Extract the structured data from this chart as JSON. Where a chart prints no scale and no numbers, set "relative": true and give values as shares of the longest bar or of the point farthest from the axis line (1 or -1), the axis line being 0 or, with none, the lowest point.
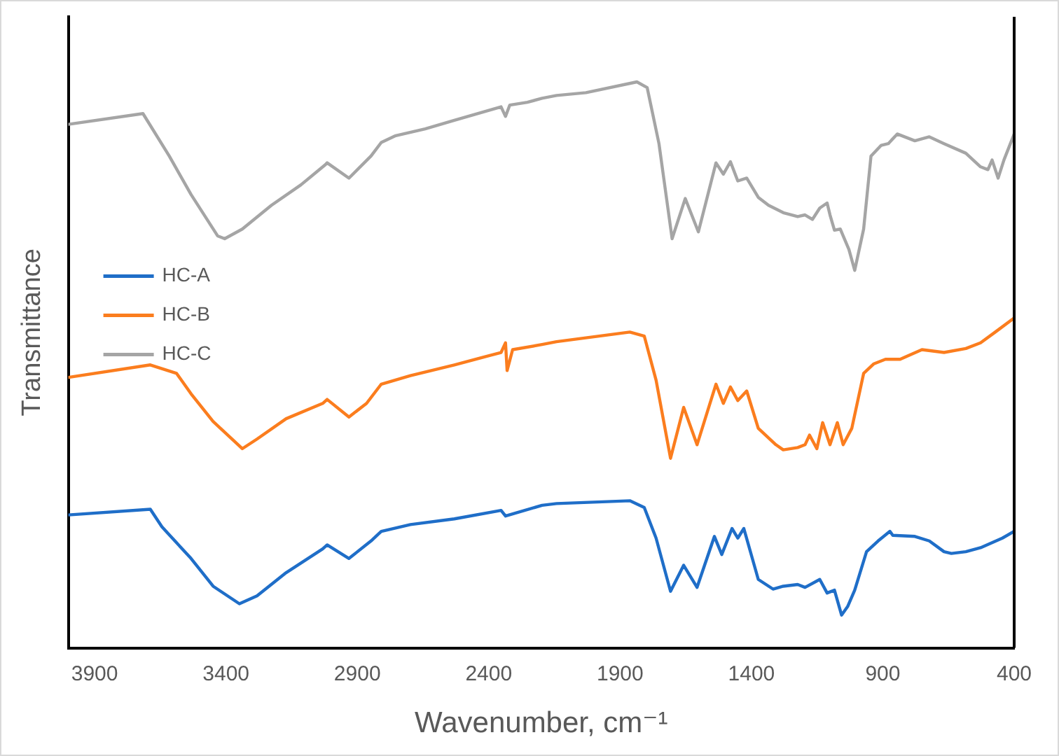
{
  "chart_data": {
    "type": "line",
    "xlabel": "Wavenumber, cm⁻¹",
    "ylabel": "Transmittance",
    "relative": true,
    "xlim": [
      4000,
      400
    ],
    "xticks": [
      3900,
      3400,
      2900,
      2400,
      1900,
      1400,
      900,
      400
    ],
    "grid": false,
    "legend": "left",
    "marker": "none",
    "line_style": "solid",
    "series": [
      {
        "name": "HC-A",
        "color": "#1f6ec8",
        "x": [
          4000,
          3688,
          3644,
          3533,
          3449,
          3349,
          3282,
          3171,
          3032,
          3015,
          2932,
          2848,
          2809,
          2698,
          2531,
          2353,
          2336,
          2197,
          2142,
          1863,
          1808,
          1763,
          1708,
          1658,
          1607,
          1541,
          1513,
          1474,
          1452,
          1429,
          1374,
          1318,
          1279,
          1224,
          1196,
          1140,
          1112,
          1084,
          1057,
          1034,
          1007,
          962,
          918,
          873,
          862,
          778,
          723,
          667,
          639,
          584,
          528,
          445,
          400
        ],
        "values": [
          0.235,
          0.245,
          0.214,
          0.158,
          0.109,
          0.078,
          0.092,
          0.133,
          0.175,
          0.182,
          0.158,
          0.189,
          0.206,
          0.218,
          0.228,
          0.243,
          0.233,
          0.252,
          0.255,
          0.26,
          0.248,
          0.194,
          0.1,
          0.146,
          0.107,
          0.197,
          0.165,
          0.211,
          0.194,
          0.211,
          0.121,
          0.104,
          0.109,
          0.112,
          0.107,
          0.121,
          0.097,
          0.102,
          0.058,
          0.073,
          0.102,
          0.17,
          0.189,
          0.206,
          0.199,
          0.197,
          0.189,
          0.17,
          0.167,
          0.17,
          0.177,
          0.194,
          0.206
        ]
      },
      {
        "name": "HC-B",
        "color": "#fb7d1e",
        "x": [
          4000,
          3688,
          3588,
          3533,
          3449,
          3338,
          3282,
          3171,
          3032,
          3015,
          2932,
          2865,
          2809,
          2698,
          2531,
          2353,
          2336,
          2330,
          2309,
          2197,
          2142,
          1863,
          1808,
          1763,
          1708,
          1658,
          1607,
          1535,
          1507,
          1480,
          1452,
          1418,
          1374,
          1307,
          1279,
          1224,
          1196,
          1179,
          1151,
          1129,
          1101,
          1073,
          1051,
          1018,
          973,
          934,
          890,
          834,
          751,
          667,
          584,
          528,
          472,
          400
        ],
        "values": [
          0.478,
          0.5,
          0.485,
          0.449,
          0.4,
          0.352,
          0.369,
          0.405,
          0.432,
          0.439,
          0.408,
          0.432,
          0.466,
          0.481,
          0.5,
          0.522,
          0.539,
          0.49,
          0.527,
          0.536,
          0.541,
          0.558,
          0.551,
          0.473,
          0.335,
          0.425,
          0.359,
          0.466,
          0.432,
          0.461,
          0.437,
          0.454,
          0.388,
          0.359,
          0.35,
          0.354,
          0.359,
          0.376,
          0.352,
          0.398,
          0.359,
          0.398,
          0.359,
          0.388,
          0.485,
          0.502,
          0.51,
          0.51,
          0.527,
          0.522,
          0.529,
          0.539,
          0.558,
          0.583
        ]
      },
      {
        "name": "HC-C",
        "color": "#a5a5a5",
        "x": [
          4000,
          3716,
          3616,
          3533,
          3432,
          3405,
          3338,
          3227,
          3115,
          3021,
          3015,
          2932,
          2848,
          2809,
          2754,
          2642,
          2531,
          2420,
          2353,
          2336,
          2320,
          2253,
          2197,
          2142,
          2030,
          1836,
          1797,
          1752,
          1702,
          1652,
          1602,
          1535,
          1507,
          1480,
          1452,
          1418,
          1374,
          1335,
          1279,
          1224,
          1196,
          1168,
          1140,
          1112,
          1101,
          1084,
          1062,
          1029,
          1007,
          973,
          945,
          906,
          879,
          845,
          778,
          723,
          667,
          584,
          528,
          500,
          484,
          461,
          439,
          400
        ],
        "values": [
          0.925,
          0.944,
          0.869,
          0.801,
          0.728,
          0.723,
          0.74,
          0.782,
          0.818,
          0.854,
          0.857,
          0.83,
          0.869,
          0.893,
          0.905,
          0.917,
          0.932,
          0.947,
          0.956,
          0.939,
          0.959,
          0.964,
          0.971,
          0.976,
          0.981,
          1,
          0.99,
          0.891,
          0.723,
          0.794,
          0.735,
          0.857,
          0.837,
          0.859,
          0.825,
          0.83,
          0.796,
          0.782,
          0.769,
          0.762,
          0.765,
          0.757,
          0.777,
          0.786,
          0.765,
          0.738,
          0.74,
          0.704,
          0.667,
          0.74,
          0.869,
          0.888,
          0.891,
          0.908,
          0.896,
          0.903,
          0.891,
          0.874,
          0.85,
          0.845,
          0.862,
          0.83,
          0.862,
          0.908
        ]
      }
    ]
  }
}
